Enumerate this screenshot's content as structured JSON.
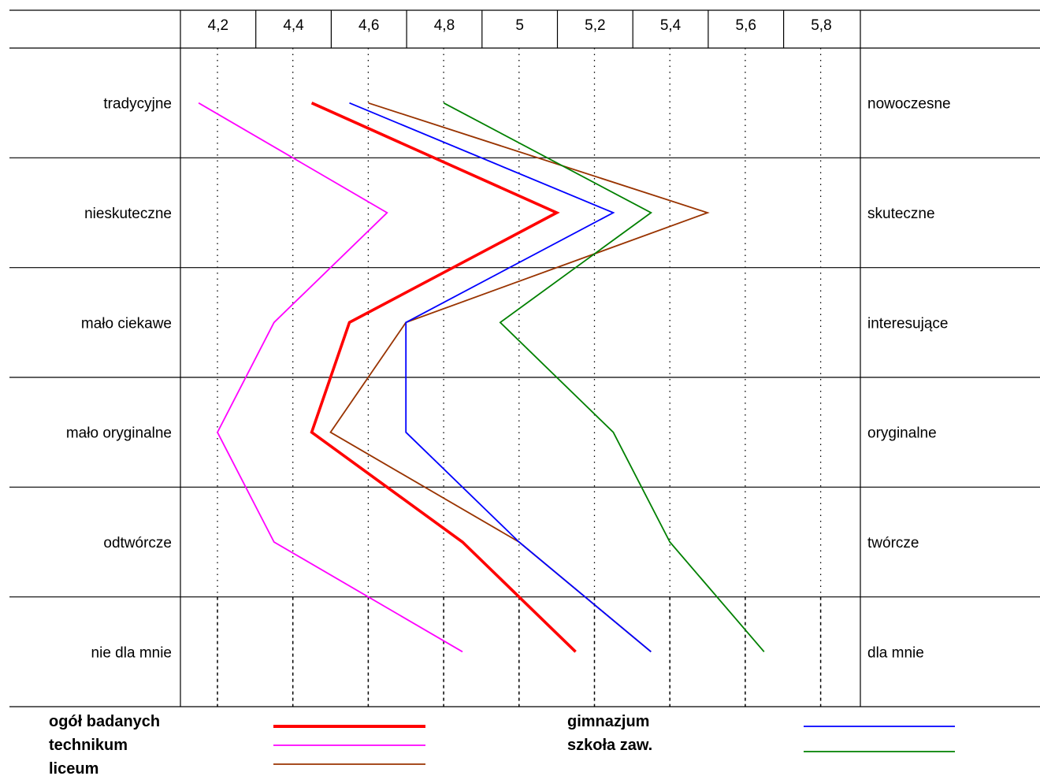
{
  "chart_data": {
    "type": "line",
    "orientation": "horizontal-profile",
    "x_ticks": [
      "4,2",
      "4,4",
      "4,6",
      "4,8",
      "5",
      "5,2",
      "5,4",
      "5,6",
      "5,8"
    ],
    "x_tick_values": [
      4.2,
      4.4,
      4.6,
      4.8,
      5.0,
      5.2,
      5.4,
      5.6,
      5.8
    ],
    "xlim": [
      4.1,
      5.9
    ],
    "rows": [
      {
        "left": "tradycyjne",
        "right": "nowoczesne"
      },
      {
        "left": "nieskuteczne",
        "right": "skuteczne"
      },
      {
        "left": "mało ciekawe",
        "right": "interesujące"
      },
      {
        "left": "mało oryginalne",
        "right": "oryginalne"
      },
      {
        "left": "odtwórcze",
        "right": "twórcze"
      },
      {
        "left": "nie dla mnie",
        "right": "dla mnie"
      }
    ],
    "grid": "vertical dotted at each tick",
    "series": [
      {
        "name": "ogół badanych",
        "color": "#ff0000",
        "width": "bold",
        "values": [
          4.45,
          5.1,
          4.55,
          4.45,
          4.85,
          5.15
        ]
      },
      {
        "name": "technikum",
        "color": "#ff00ff",
        "width": "thin",
        "values": [
          4.15,
          4.65,
          4.35,
          4.2,
          4.35,
          4.85
        ]
      },
      {
        "name": "liceum",
        "color": "#993300",
        "width": "thin",
        "values": [
          4.6,
          5.5,
          4.7,
          4.5,
          5.0,
          5.35
        ]
      },
      {
        "name": "gimnazjum",
        "color": "#0000ff",
        "width": "thin",
        "values": [
          4.55,
          5.25,
          4.7,
          4.7,
          5.0,
          5.35
        ]
      },
      {
        "name": "szkoła zaw.",
        "color": "#008000",
        "width": "thin",
        "values": [
          4.8,
          5.35,
          4.95,
          5.25,
          5.4,
          5.65
        ]
      }
    ],
    "legend_placement": "bottom"
  },
  "legend": [
    {
      "label": "ogół badanych",
      "color": "#ff0000"
    },
    {
      "label": "technikum",
      "color": "#ff00ff"
    },
    {
      "label": "liceum",
      "color": "#993300"
    },
    {
      "label": "gimnazjum",
      "color": "#0000ff"
    },
    {
      "label": "szkoła zaw.",
      "color": "#008000"
    }
  ]
}
